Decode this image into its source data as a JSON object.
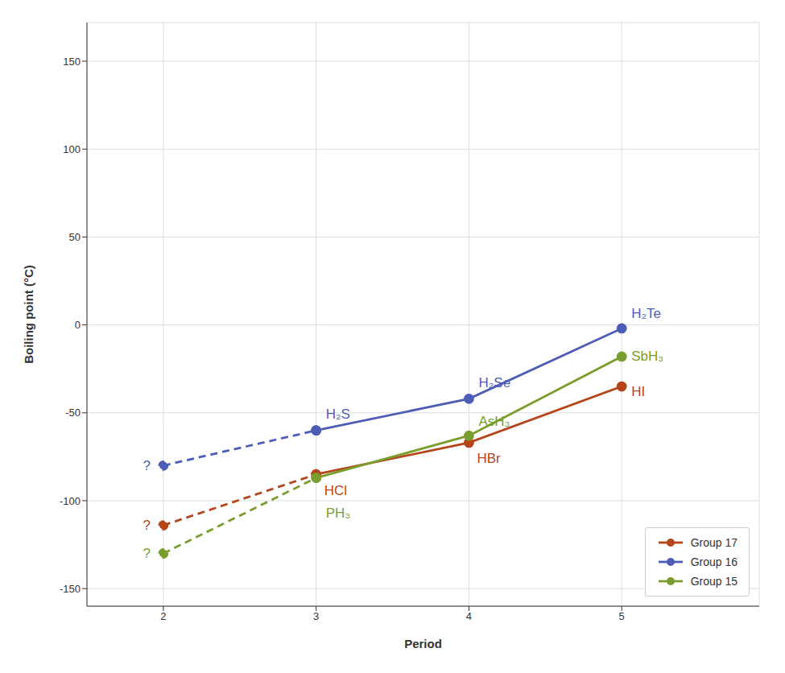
{
  "chart_data": {
    "type": "line",
    "xlabel": "Period",
    "ylabel": "Boiling point (°C)",
    "xlim": [
      1.5,
      5.9
    ],
    "ylim": [
      -160,
      172
    ],
    "xticks": [
      2,
      3,
      4,
      5
    ],
    "yticks": [
      -150,
      -100,
      -50,
      0,
      50,
      100,
      150
    ],
    "grid": true,
    "legend": "lower right",
    "series": [
      {
        "name": "Group 17",
        "color": "#b5451b",
        "marker": "circle",
        "line_style": "solid",
        "x": [
          3,
          4,
          5
        ],
        "values": [
          -85,
          -67,
          -35
        ],
        "extension": {
          "line_style": "dashed",
          "x": [
            2,
            3
          ],
          "values": [
            -114,
            -85
          ]
        },
        "annotations": [
          {
            "text": "HCl",
            "x": 3,
            "y": -85
          },
          {
            "text": "HBr",
            "x": 4,
            "y": -67
          },
          {
            "text": "HI",
            "x": 5,
            "y": -35
          },
          {
            "text": "?",
            "x": 2,
            "y": -114
          }
        ]
      },
      {
        "name": "Group 16",
        "color": "#4d5db5",
        "marker": "circle",
        "line_style": "solid",
        "x": [
          3,
          4,
          5
        ],
        "values": [
          -60,
          -42,
          -2
        ],
        "extension": {
          "line_style": "dashed",
          "x": [
            2,
            3
          ],
          "values": [
            -80,
            -60
          ]
        },
        "annotations": [
          {
            "text": "H₂S",
            "x": 3,
            "y": -60
          },
          {
            "text": "H₂Se",
            "x": 4,
            "y": -42
          },
          {
            "text": "H₂Te",
            "x": 5,
            "y": -2
          },
          {
            "text": "?",
            "x": 2,
            "y": -80
          }
        ]
      },
      {
        "name": "Group 15",
        "color": "#7a9e2e",
        "marker": "circle",
        "line_style": "solid",
        "x": [
          3,
          4,
          5
        ],
        "values": [
          -87,
          -63,
          -18
        ],
        "extension": {
          "line_style": "dashed",
          "x": [
            2,
            3
          ],
          "values": [
            -130,
            -87
          ]
        },
        "annotations": [
          {
            "text": "PH₃",
            "x": 3,
            "y": -87
          },
          {
            "text": "AsH₃",
            "x": 4,
            "y": -63
          },
          {
            "text": "SbH₃",
            "x": 5,
            "y": -18
          },
          {
            "text": "?",
            "x": 2,
            "y": -130
          }
        ]
      }
    ]
  }
}
